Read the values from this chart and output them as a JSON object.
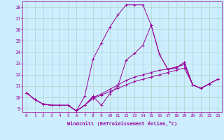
{
  "xlabel": "Windchill (Refroidissement éolien,°C)",
  "background_color": "#cceeff",
  "line_color": "#990099",
  "xlim": [
    -0.5,
    23.5
  ],
  "ylim": [
    8.7,
    18.5
  ],
  "xticks": [
    0,
    1,
    2,
    3,
    4,
    5,
    6,
    7,
    8,
    9,
    10,
    11,
    12,
    13,
    14,
    15,
    16,
    17,
    18,
    19,
    20,
    21,
    22,
    23
  ],
  "yticks": [
    9,
    10,
    11,
    12,
    13,
    14,
    15,
    16,
    17,
    18
  ],
  "series": [
    [
      10.4,
      9.8,
      9.4,
      9.3,
      9.3,
      9.3,
      8.8,
      9.3,
      10.1,
      9.3,
      10.3,
      11.0,
      13.3,
      13.9,
      14.6,
      16.4,
      13.8,
      12.5,
      12.6,
      13.1,
      11.1,
      10.8,
      11.2,
      11.6
    ],
    [
      10.4,
      9.8,
      9.4,
      9.3,
      9.3,
      9.3,
      8.8,
      10.1,
      13.4,
      14.8,
      16.2,
      17.3,
      18.2,
      18.2,
      18.2,
      16.4,
      13.8,
      12.5,
      12.6,
      13.1,
      11.1,
      10.8,
      11.2,
      11.6
    ],
    [
      10.4,
      9.8,
      9.4,
      9.3,
      9.3,
      9.3,
      8.8,
      9.3,
      10.0,
      10.3,
      10.7,
      11.1,
      11.5,
      11.8,
      12.0,
      12.2,
      12.4,
      12.5,
      12.7,
      12.9,
      11.1,
      10.8,
      11.2,
      11.6
    ],
    [
      10.4,
      9.8,
      9.4,
      9.3,
      9.3,
      9.3,
      8.8,
      9.3,
      9.9,
      10.2,
      10.5,
      10.8,
      11.1,
      11.4,
      11.6,
      11.8,
      12.0,
      12.2,
      12.4,
      12.6,
      11.1,
      10.8,
      11.2,
      11.6
    ]
  ],
  "label_fontsize": 5.0,
  "tick_fontsize": 4.5
}
